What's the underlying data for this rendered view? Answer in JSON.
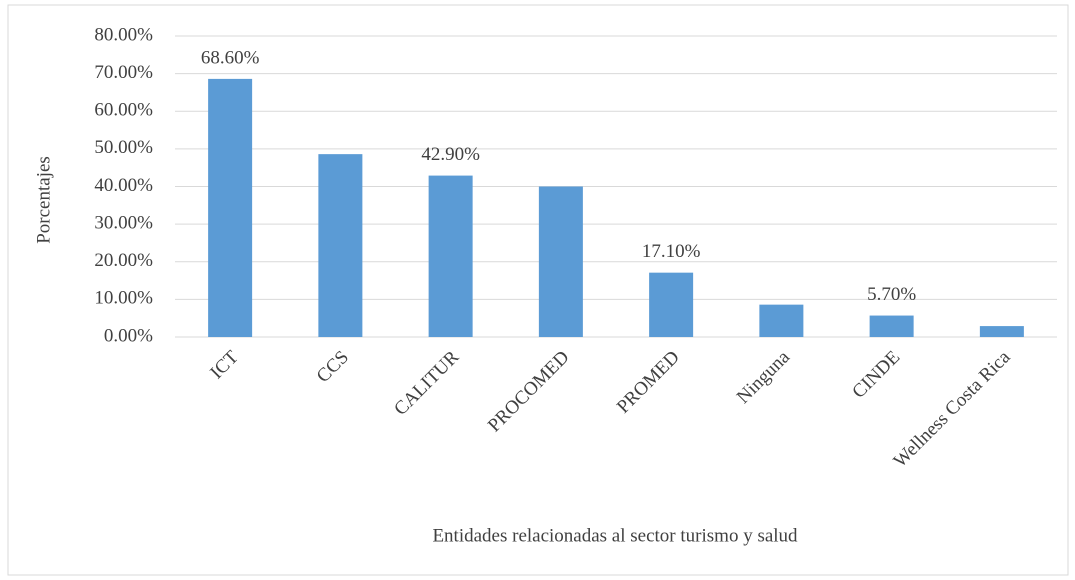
{
  "chart_data": {
    "type": "bar",
    "x_label": "Entidades relacionadas al sector turismo y salud",
    "y_label": "Porcentajes",
    "categories": [
      "ICT",
      "CCS",
      "CALITUR",
      "PROCOMED",
      "PROMED",
      "Ninguna",
      "CINDE",
      "Wellness Costa Rica"
    ],
    "values": [
      68.6,
      48.6,
      42.9,
      40.0,
      17.1,
      8.6,
      5.7,
      2.9
    ],
    "value_labels": [
      "68.60%",
      null,
      "42.90%",
      null,
      "17.10%",
      null,
      "5.70%",
      null
    ],
    "color": "#5b9bd5",
    "ylim": [
      0,
      80
    ],
    "yticks": [
      {
        "value": 0,
        "label": "0.00%"
      },
      {
        "value": 10,
        "label": "10.00%"
      },
      {
        "value": 20,
        "label": "20.00%"
      },
      {
        "value": 30,
        "label": "30.00%"
      },
      {
        "value": 40,
        "label": "40.00%"
      },
      {
        "value": 50,
        "label": "50.00%"
      },
      {
        "value": 60,
        "label": "60.00%"
      },
      {
        "value": 70,
        "label": "70.00%"
      },
      {
        "value": 80,
        "label": "80.00%"
      }
    ],
    "grid": true
  }
}
